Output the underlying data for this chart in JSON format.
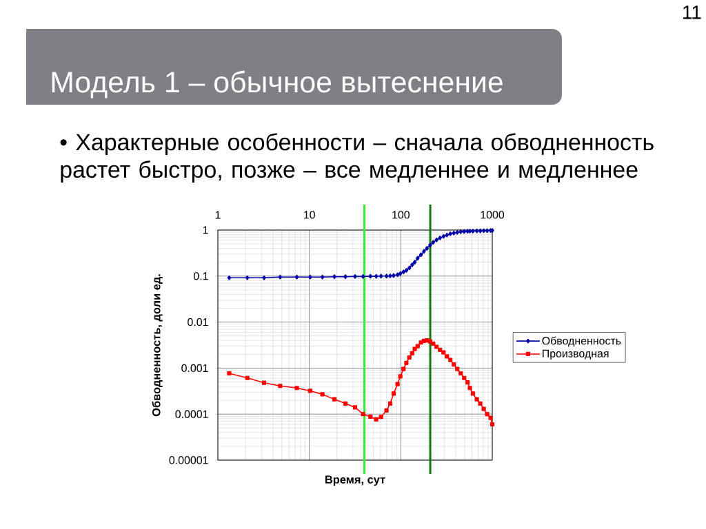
{
  "chart_data": {
    "type": "line",
    "title": "Модель 1 – обычное вытеснение",
    "subtitle": "• Характерные особенности – сначала обводненность растет быстро, позже – все медленнее и медленнее",
    "xlabel": "Время, сут",
    "ylabel": "Обводненность, доли ед.",
    "annotations": [
      "11"
    ],
    "x": [
      1.33,
      2.1,
      3.2,
      4.8,
      7.3,
      10.2,
      13.9,
      18.8,
      24.8,
      31.6,
      38.7,
      46.5,
      53.8,
      60.8,
      69.8,
      76.6,
      83.5,
      92.2,
      98.8,
      107,
      115,
      124,
      133,
      142,
      153,
      166,
      179,
      193,
      209,
      226,
      246,
      268,
      293,
      319,
      348,
      380,
      414,
      452,
      493,
      537,
      569,
      614,
      678,
      739,
      807,
      879,
      959,
      1000
    ],
    "series": [
      {
        "name": "Обводненность",
        "color": "#0000a8",
        "marker": "diamond",
        "values": [
          0.092,
          0.092,
          0.092,
          0.095,
          0.095,
          0.095,
          0.095,
          0.097,
          0.097,
          0.098,
          0.098,
          0.099,
          0.099,
          0.1,
          0.1,
          0.101,
          0.103,
          0.107,
          0.113,
          0.123,
          0.133,
          0.15,
          0.175,
          0.2,
          0.245,
          0.29,
          0.345,
          0.4,
          0.47,
          0.54,
          0.61,
          0.675,
          0.73,
          0.78,
          0.83,
          0.86,
          0.89,
          0.92,
          0.93,
          0.94,
          0.95,
          0.95,
          0.96,
          0.96,
          0.97,
          0.97,
          0.98,
          0.98
        ]
      },
      {
        "name": "Производная",
        "color": "#ff0000",
        "marker": "square",
        "values": [
          0.00077,
          0.00061,
          0.00048,
          0.00041,
          0.00037,
          0.00032,
          0.00027,
          0.00021,
          0.00017,
          0.00014,
          0.0001,
          8.8e-05,
          7.7e-05,
          8.7e-05,
          0.00012,
          0.00017,
          0.00028,
          0.00045,
          0.00066,
          0.00096,
          0.0013,
          0.0017,
          0.0021,
          0.0026,
          0.003,
          0.0036,
          0.0039,
          0.004,
          0.0038,
          0.0034,
          0.0029,
          0.0025,
          0.0022,
          0.0018,
          0.0015,
          0.0012,
          0.00096,
          0.00077,
          0.00061,
          0.00049,
          0.00037,
          0.00028,
          0.00021,
          0.00017,
          0.00013,
          0.0001,
          8.3e-05,
          6e-05
        ]
      }
    ],
    "xlim": [
      1,
      1000
    ],
    "ylim": [
      1e-05,
      1
    ],
    "xticks": [
      1,
      10,
      100,
      1000
    ],
    "yticks": [
      {
        "value": 1e-05,
        "label": "0.00001"
      },
      {
        "value": 0.0001,
        "label": "0.0001"
      },
      {
        "value": 0.001,
        "label": "0.001"
      },
      {
        "value": 0.01,
        "label": "0.01"
      },
      {
        "value": 0.1,
        "label": "0.1"
      },
      {
        "value": 1,
        "label": "1"
      }
    ],
    "log": "xy",
    "grid": true,
    "legend": "right",
    "ref_lines": [
      {
        "axis": "x",
        "value": 40,
        "color": "#33ee33"
      },
      {
        "axis": "x",
        "value": 210,
        "color": "#127812"
      }
    ]
  }
}
